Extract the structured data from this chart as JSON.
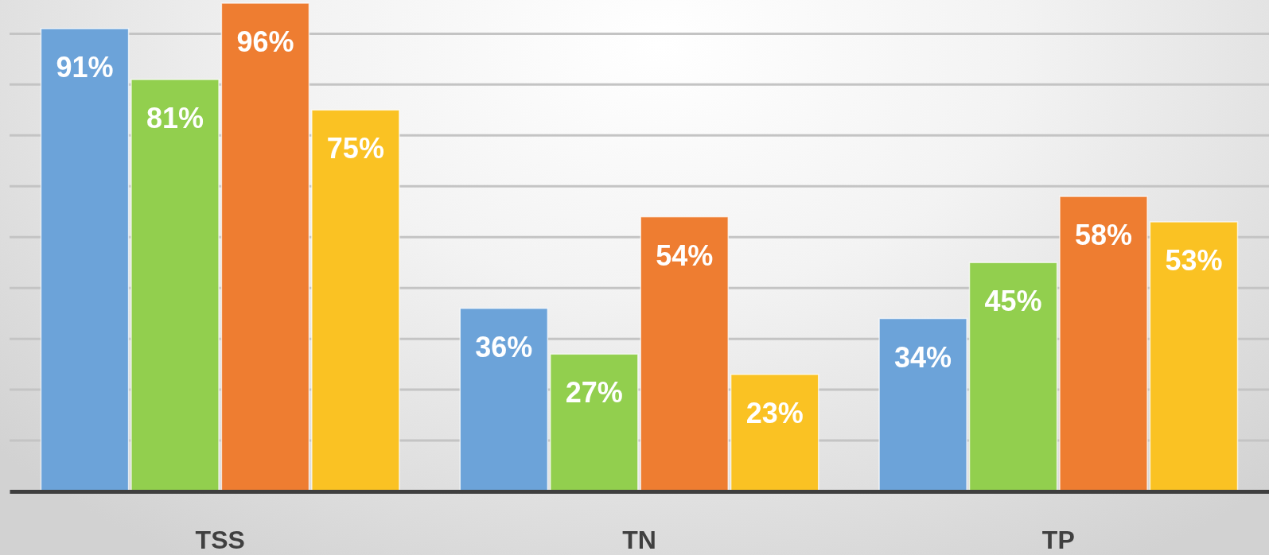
{
  "chart_data": {
    "type": "bar",
    "categories": [
      "TSS",
      "TN",
      "TP"
    ],
    "series": [
      {
        "color": "#6ca3d9",
        "values": [
          91,
          36,
          34
        ],
        "value_labels": [
          "91%",
          "36%",
          "34%"
        ]
      },
      {
        "color": "#92cf4e",
        "values": [
          81,
          27,
          45
        ],
        "value_labels": [
          "81%",
          "27%",
          "45%"
        ]
      },
      {
        "color": "#ee7d31",
        "values": [
          96,
          54,
          58
        ],
        "value_labels": [
          "96%",
          "54%",
          "58%"
        ]
      },
      {
        "color": "#fac223",
        "values": [
          75,
          23,
          53
        ],
        "value_labels": [
          "75%",
          "23%",
          "53%"
        ]
      }
    ],
    "yticks": [
      {
        "value": 10,
        "label": null
      },
      {
        "value": 20,
        "label": null
      },
      {
        "value": 30,
        "label": null
      },
      {
        "value": 40,
        "label": null
      },
      {
        "value": 50,
        "label": null
      },
      {
        "value": 60,
        "label": null
      },
      {
        "value": 70,
        "label": null
      },
      {
        "value": 80,
        "label": null
      },
      {
        "value": 90,
        "label": null
      }
    ],
    "grid": "y",
    "tick_labels": "x"
  }
}
